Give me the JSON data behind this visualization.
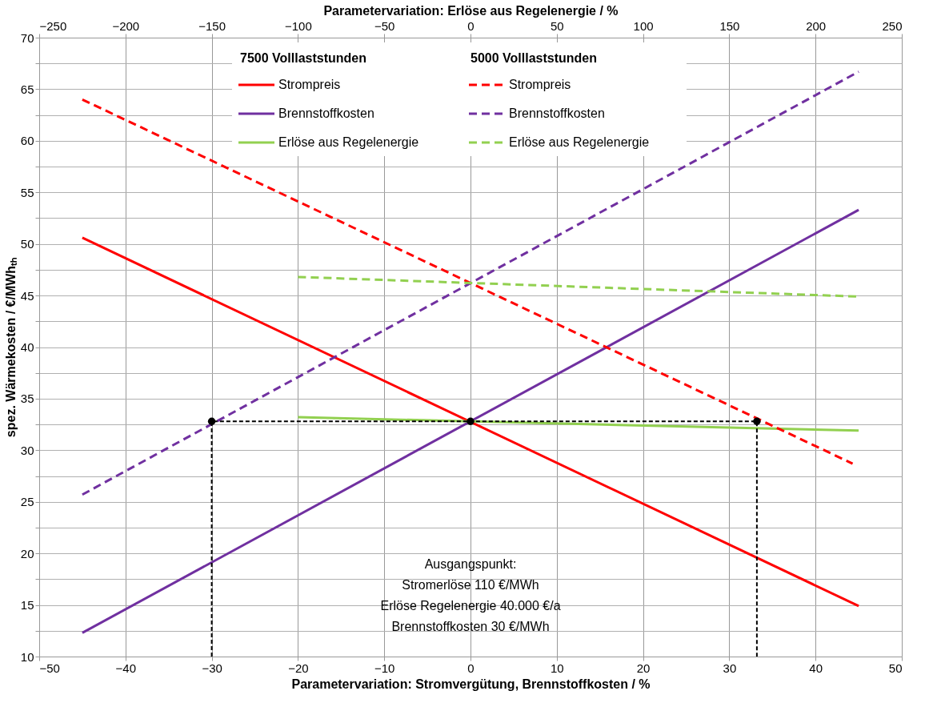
{
  "chart_data": {
    "type": "line",
    "xlabel": "Parametervariation:  Stromvergütung, Brennstoffkosten  / %",
    "x2label": "Parametervariation: Erlöse aus Regelenergie  / %",
    "ylabel": "spez. Wärmekosten / €/MWhₜₕ",
    "xlim": [
      -50,
      50
    ],
    "xticks": [
      -50,
      -40,
      -30,
      -20,
      -10,
      0,
      10,
      20,
      30,
      40,
      50
    ],
    "x2lim": [
      -250,
      250
    ],
    "x2ticks": [
      -250,
      -200,
      -150,
      -100,
      -50,
      0,
      50,
      100,
      150,
      200,
      250
    ],
    "ylim": [
      10,
      70
    ],
    "yticks": [
      10,
      {
        "value": 12.5,
        "label": null
      },
      15,
      {
        "value": 17.5,
        "label": null
      },
      20,
      {
        "value": 22.5,
        "label": null
      },
      25,
      {
        "value": 27.5,
        "label": null
      },
      30,
      {
        "value": 32.5,
        "label": null
      },
      35,
      {
        "value": 37.5,
        "label": null
      },
      40,
      {
        "value": 42.5,
        "label": null
      },
      45,
      {
        "value": 47.5,
        "label": null
      },
      50,
      {
        "value": 52.5,
        "label": null
      },
      55,
      {
        "value": 57.5,
        "label": null
      },
      60,
      {
        "value": 62.5,
        "label": null
      },
      65,
      {
        "value": 67.5,
        "label": null
      },
      70
    ],
    "grid": true,
    "legend": "top",
    "series": [
      {
        "name": "Strompreis",
        "color": "#ff0000",
        "line_style": "solid",
        "x": [
          -45,
          45
        ],
        "values": [
          50.6,
          14.9
        ]
      },
      {
        "name": "Brennstoffkosten",
        "color": "#7030a0",
        "line_style": "solid",
        "x": [
          -45,
          45
        ],
        "values": [
          12.3,
          53.3
        ]
      },
      {
        "name": "Erlöse aus Regelenergie",
        "color": "#92d050",
        "line_style": "solid",
        "axis": "x2",
        "x": [
          -100,
          225
        ],
        "values": [
          33.2,
          31.9
        ]
      },
      {
        "name": "Strompreis",
        "color": "#ff0000",
        "line_style": "dashed",
        "x": [
          -45,
          44.3
        ],
        "values": [
          64.0,
          28.7
        ]
      },
      {
        "name": "Brennstoffkosten",
        "color": "#7030a0",
        "line_style": "dashed",
        "x": [
          -45,
          45
        ],
        "values": [
          25.7,
          66.7
        ]
      },
      {
        "name": "Erlöse aus Regelenergie",
        "color": "#92d050",
        "line_style": "dashed",
        "axis": "x2",
        "x": [
          -100,
          225
        ],
        "values": [
          46.8,
          44.9
        ]
      },
      {
        "color": "#000000",
        "line_style": "dashed",
        "x": [
          -30,
          -30,
          0,
          33.2,
          33.2
        ],
        "values": [
          10,
          32.8,
          32.8,
          32.8,
          10
        ]
      },
      {
        "type": "scatter",
        "marker": "circle",
        "color": "#000000",
        "x": [
          -30,
          0,
          33.2
        ],
        "values": [
          32.8,
          32.8,
          32.8
        ]
      }
    ],
    "annotations": [
      "7500 Volllaststunden",
      "5000 Volllaststunden",
      "Ausgangspunkt:\nStromerlöse 110 €/MWh\nErlöse Regelenergie 40.000 €/a\nBrennstoffkosten 30 €/MWh"
    ]
  }
}
